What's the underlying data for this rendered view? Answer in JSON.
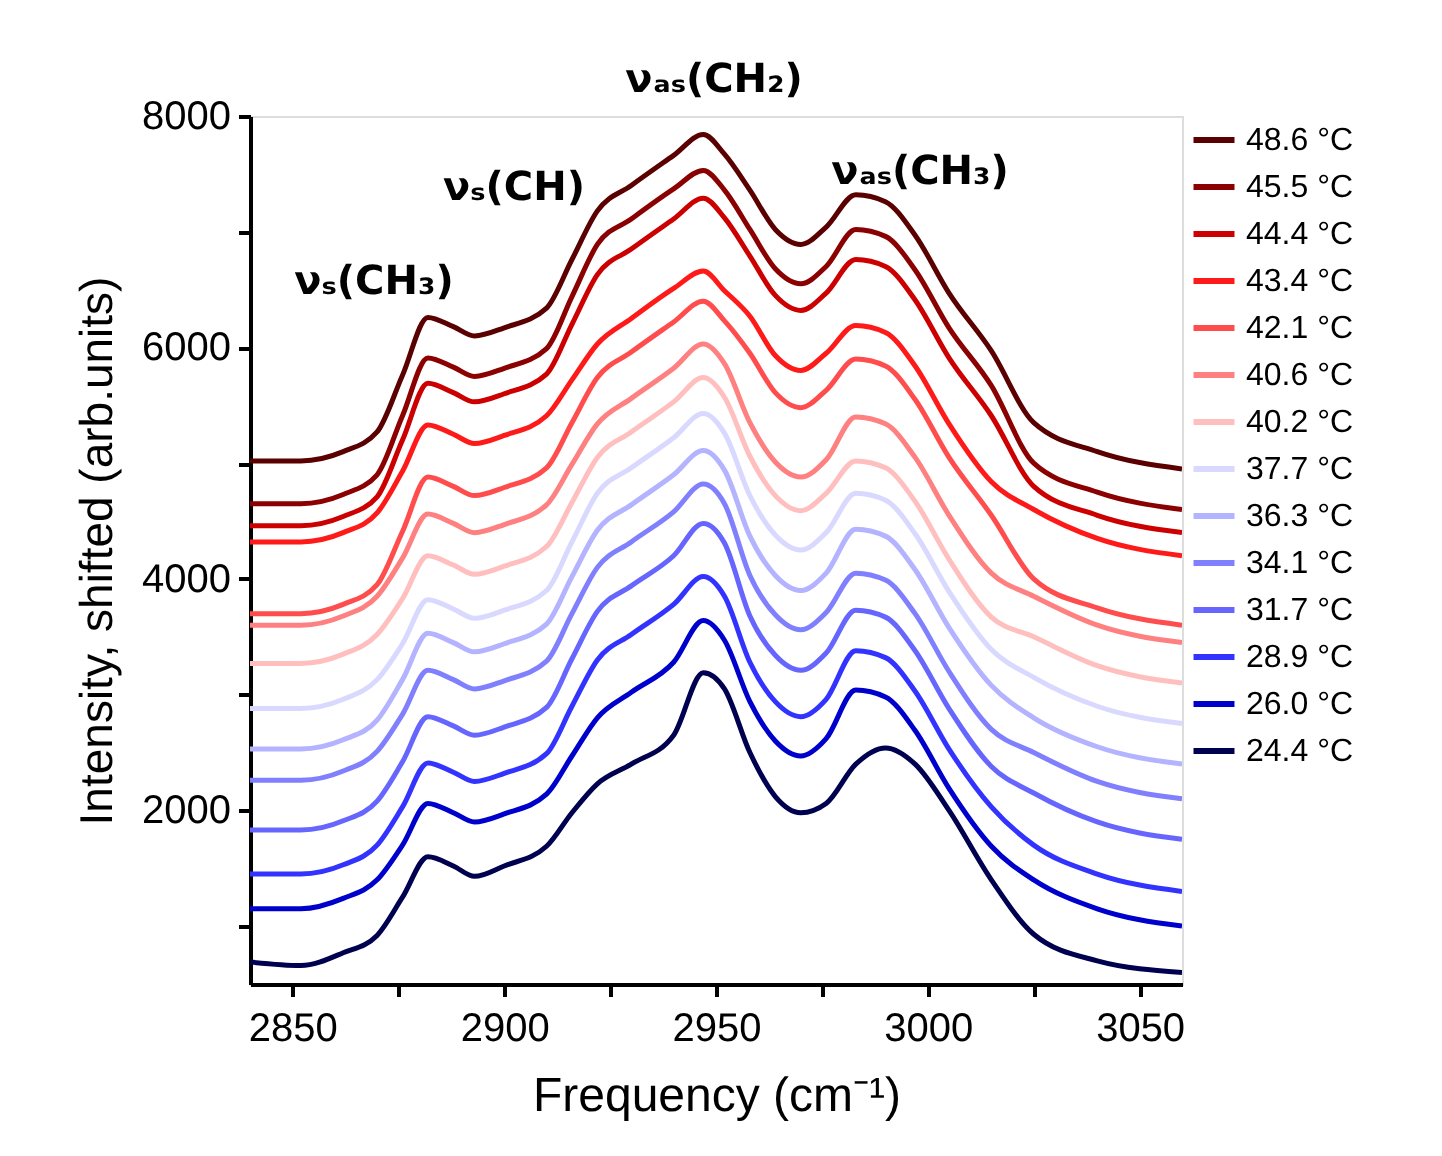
{
  "chart_data": {
    "type": "line",
    "xlabel": "Frequency (cm⁻¹)",
    "ylabel": "Intensity, shifted (arb.units)",
    "x": [
      2840,
      2852,
      2862,
      2870,
      2876,
      2882,
      2888,
      2893,
      2900,
      2910,
      2916,
      2922,
      2930,
      2940,
      2947,
      2952,
      2958,
      2964,
      2970,
      2976,
      2983,
      2990,
      2997,
      3005,
      3015,
      3025,
      3040,
      3060
    ],
    "series": [
      {
        "name": "48.6 °C",
        "color": "#5a0000",
        "values": [
          5020,
          5020,
          5100,
          5270,
          5760,
          6260,
          6180,
          6100,
          6170,
          6340,
          6760,
          7180,
          7400,
          7660,
          7840,
          7670,
          7360,
          7020,
          6890,
          7040,
          7320,
          7260,
          6970,
          6470,
          5970,
          5350,
          5100,
          4950
        ]
      },
      {
        "name": "45.5 °C",
        "color": "#8b0000",
        "values": [
          4650,
          4650,
          4730,
          4900,
          5410,
          5910,
          5830,
          5750,
          5820,
          5990,
          6440,
          6890,
          7110,
          7370,
          7530,
          7360,
          7020,
          6680,
          6550,
          6700,
          7020,
          6960,
          6670,
          6170,
          5670,
          5000,
          4750,
          4600
        ]
      },
      {
        "name": "44.4 °C",
        "color": "#cc0000",
        "values": [
          4460,
          4460,
          4540,
          4710,
          5200,
          5690,
          5610,
          5530,
          5600,
          5770,
          6200,
          6630,
          6850,
          7110,
          7290,
          7120,
          6790,
          6450,
          6320,
          6470,
          6760,
          6700,
          6410,
          5910,
          5410,
          4800,
          4550,
          4400
        ]
      },
      {
        "name": "43.4 °C",
        "color": "#ff1a1a",
        "values": [
          4320,
          4320,
          4400,
          4570,
          4930,
          5330,
          5250,
          5170,
          5240,
          5410,
          5720,
          6030,
          6250,
          6510,
          6660,
          6490,
          6270,
          5930,
          5800,
          5950,
          6190,
          6130,
          5840,
          5340,
          4840,
          4600,
          4350,
          4200
        ]
      },
      {
        "name": "42.1 °C",
        "color": "#ff4d4d",
        "values": [
          3700,
          3700,
          3780,
          3950,
          4410,
          4880,
          4800,
          4720,
          4790,
          4960,
          5350,
          5740,
          5960,
          6220,
          6400,
          6230,
          5950,
          5610,
          5480,
          5630,
          5900,
          5840,
          5550,
          5050,
          4550,
          4000,
          3750,
          3600
        ]
      },
      {
        "name": "40.6 °C",
        "color": "#ff8080",
        "values": [
          3600,
          3600,
          3680,
          3850,
          4180,
          4560,
          4480,
          4400,
          4470,
          4640,
          4990,
          5340,
          5560,
          5820,
          6030,
          5860,
          5350,
          5010,
          4880,
          5030,
          5400,
          5340,
          5050,
          4550,
          4050,
          3850,
          3600,
          3450
        ]
      },
      {
        "name": "40.2 °C",
        "color": "#ffbfbf",
        "values": [
          3270,
          3270,
          3350,
          3520,
          3830,
          4200,
          4120,
          4040,
          4110,
          4280,
          4660,
          5050,
          5270,
          5530,
          5740,
          5570,
          5060,
          4720,
          4590,
          4740,
          5020,
          4960,
          4670,
          4170,
          3670,
          3500,
          3250,
          3100
        ]
      },
      {
        "name": "37.7 °C",
        "color": "#d9d9ff",
        "values": [
          2880,
          2880,
          2960,
          3130,
          3440,
          3820,
          3740,
          3660,
          3730,
          3900,
          4320,
          4740,
          4960,
          5220,
          5430,
          5260,
          4720,
          4380,
          4250,
          4400,
          4740,
          4680,
          4390,
          3890,
          3390,
          3150,
          2900,
          2750
        ]
      },
      {
        "name": "36.3 °C",
        "color": "#b3b3ff",
        "values": [
          2530,
          2530,
          2610,
          2780,
          3130,
          3530,
          3450,
          3370,
          3440,
          3610,
          4020,
          4420,
          4640,
          4900,
          5110,
          4940,
          4370,
          4030,
          3900,
          4050,
          4430,
          4370,
          4080,
          3580,
          3080,
          2800,
          2550,
          2400
        ]
      },
      {
        "name": "34.1 °C",
        "color": "#8080ff",
        "values": [
          2260,
          2260,
          2340,
          2510,
          2830,
          3210,
          3130,
          3050,
          3120,
          3290,
          3700,
          4100,
          4320,
          4580,
          4820,
          4650,
          4030,
          3690,
          3560,
          3710,
          4050,
          3990,
          3700,
          3200,
          2700,
          2500,
          2250,
          2100
        ]
      },
      {
        "name": "31.7 °C",
        "color": "#6666ff",
        "values": [
          1830,
          1830,
          1910,
          2080,
          2420,
          2810,
          2730,
          2650,
          2720,
          2890,
          3310,
          3720,
          3940,
          4200,
          4480,
          4310,
          3680,
          3340,
          3210,
          3360,
          3730,
          3670,
          3380,
          2880,
          2380,
          2150,
          1900,
          1750
        ]
      },
      {
        "name": "28.9 °C",
        "color": "#3333ff",
        "values": [
          1450,
          1450,
          1530,
          1700,
          2030,
          2410,
          2330,
          2250,
          2320,
          2490,
          2900,
          3300,
          3520,
          3780,
          4020,
          3850,
          3280,
          2940,
          2810,
          2960,
          3380,
          3320,
          3030,
          2530,
          2030,
          1700,
          1450,
          1300
        ]
      },
      {
        "name": "26.0 °C",
        "color": "#0000cc",
        "values": [
          1150,
          1150,
          1240,
          1400,
          1700,
          2060,
          1980,
          1900,
          1970,
          2140,
          2470,
          2800,
          3020,
          3280,
          3640,
          3470,
          2940,
          2600,
          2470,
          2620,
          3040,
          2980,
          2690,
          2190,
          1690,
          1400,
          1150,
          1000
        ]
      },
      {
        "name": "24.4 °C",
        "color": "#000050",
        "values": [
          690,
          660,
          770,
          920,
          1250,
          1600,
          1520,
          1430,
          1520,
          1690,
          1980,
          2230,
          2400,
          2650,
          3190,
          3050,
          2500,
          2120,
          1980,
          2060,
          2400,
          2540,
          2400,
          2000,
          1400,
          930,
          700,
          600
        ]
      }
    ],
    "xlim": [
      2840,
      3060
    ],
    "xticks": [
      2850,
      {
        "value": 2875,
        "label": null
      },
      2900,
      {
        "value": 2925,
        "label": null
      },
      2950,
      {
        "value": 2975,
        "label": null
      },
      3000,
      {
        "value": 3025,
        "label": null
      },
      3050
    ],
    "ylim": [
      500,
      8000
    ],
    "yticks": [
      {
        "value": 1000,
        "label": null
      },
      2000,
      {
        "value": 3000,
        "label": null
      },
      4000,
      {
        "value": 5000,
        "label": null
      },
      6000,
      {
        "value": 7000,
        "label": null
      },
      8000
    ],
    "annotations": [
      "νₛ(CH₃)",
      "νₛ(CH)",
      "νₐₛ(CH₂)",
      "νₐₛ(CH₃)"
    ],
    "grid": false,
    "legend": "right",
    "marker": "none",
    "line_style": "solid"
  }
}
